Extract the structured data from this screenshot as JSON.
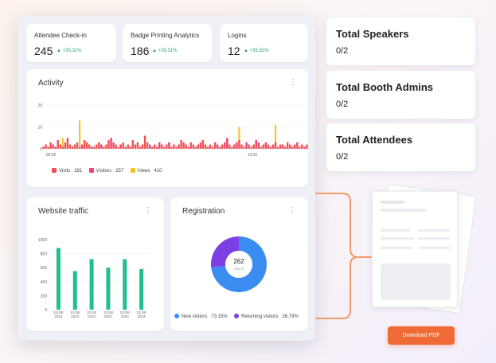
{
  "stats": [
    {
      "title": "Attendee Check-in",
      "value": "245",
      "delta": "▲ +35.31%"
    },
    {
      "title": "Badge Printing Analytics",
      "value": "186",
      "delta": "▲ +35.31%"
    },
    {
      "title": "Logins",
      "value": "12",
      "delta": "▲ +35.31%"
    }
  ],
  "activity": {
    "title": "Activity",
    "menu_icon": "more-vertical-icon",
    "legend": [
      {
        "label": "Visits",
        "value": "281",
        "color": "#ef5350"
      },
      {
        "label": "Visitors",
        "value": "257",
        "color": "#ec407a"
      },
      {
        "label": "Views",
        "value": "410",
        "color": "#f5c518"
      }
    ]
  },
  "traffic": {
    "title": "Website traffic",
    "menu_icon": "more-vertical-icon"
  },
  "registration": {
    "title": "Registration",
    "menu_icon": "more-vertical-icon",
    "center_value": "262",
    "center_sub": "100 %",
    "legend": [
      {
        "label": "New visitors",
        "value": "73.15%",
        "color": "#3b8cf0"
      },
      {
        "label": "Returning visitors",
        "value": "26.79%",
        "color": "#7b3fe4"
      }
    ]
  },
  "right_cards": [
    {
      "title": "Total Speakers",
      "value": "0/2"
    },
    {
      "title": "Total Booth Admins",
      "value": "0/2"
    },
    {
      "title": "Total Attendees",
      "value": "0/2"
    }
  ],
  "download_label": "Download PDF",
  "colors": {
    "accent": "#f06a35",
    "bar_green": "#1fbf94"
  },
  "chart_data": [
    {
      "type": "bar",
      "title": "Activity",
      "x_tick_labels": [
        "00:00",
        "12:00"
      ],
      "y_tick_labels": [
        "20",
        "10",
        "0"
      ],
      "ylim": [
        0,
        20
      ],
      "series": [
        {
          "name": "Visits",
          "values": [
            1,
            2,
            1,
            3,
            2,
            1,
            4,
            2,
            1,
            3,
            5,
            2,
            1,
            2,
            3,
            1,
            2,
            4,
            3,
            2,
            1,
            1,
            2,
            3,
            2,
            1,
            2,
            4,
            5,
            3,
            2,
            1,
            2,
            3,
            1,
            2,
            1,
            4,
            2,
            3,
            1,
            2,
            6,
            3,
            2,
            1,
            2,
            1,
            3,
            2,
            1,
            2,
            3,
            1,
            2,
            1,
            2,
            4,
            3,
            2,
            1,
            3,
            2,
            1,
            2,
            3,
            4,
            2,
            1,
            2,
            1,
            3,
            2,
            1,
            2,
            3,
            5,
            2,
            1,
            2,
            3,
            4,
            2,
            1,
            3,
            2,
            1,
            2,
            4,
            3,
            1,
            2,
            3,
            2,
            1,
            2,
            3,
            1,
            2,
            2,
            1,
            3,
            2,
            1,
            2,
            3,
            1,
            2,
            1,
            2
          ]
        },
        {
          "name": "Views",
          "values": [
            0,
            0,
            0,
            0,
            0,
            0,
            0,
            0,
            5,
            0,
            0,
            0,
            0,
            0,
            0,
            13,
            0,
            0,
            0,
            0,
            0,
            0,
            0,
            0,
            0,
            0,
            0,
            0,
            0,
            0,
            0,
            0,
            0,
            0,
            0,
            0,
            0,
            0,
            0,
            0,
            0,
            0,
            0,
            0,
            0,
            0,
            0,
            0,
            0,
            0,
            0,
            0,
            0,
            0,
            0,
            0,
            0,
            0,
            0,
            0,
            0,
            0,
            0,
            0,
            0,
            0,
            0,
            0,
            0,
            0,
            0,
            0,
            0,
            0,
            0,
            0,
            0,
            0,
            0,
            0,
            0,
            10,
            0,
            0,
            0,
            0,
            0,
            0,
            0,
            0,
            0,
            0,
            0,
            0,
            0,
            0,
            11,
            0,
            0,
            0,
            0,
            0,
            0,
            0,
            0,
            0,
            0,
            0,
            0,
            0
          ]
        }
      ]
    },
    {
      "type": "bar",
      "title": "Website traffic",
      "categories": [
        "11/18/ 2024",
        "11/18/ 2024",
        "11/18/ 2024",
        "11/18/ 2024",
        "11/18/ 2024",
        "11/18/ 2024"
      ],
      "values": [
        880,
        550,
        720,
        600,
        720,
        580
      ],
      "y_tick_labels": [
        "1000",
        "800",
        "600",
        "400",
        "200",
        "0"
      ],
      "ylim": [
        0,
        1000
      ]
    },
    {
      "type": "pie",
      "title": "Registration",
      "categories": [
        "New visitors",
        "Returning visitors"
      ],
      "values": [
        73.15,
        26.79
      ]
    }
  ]
}
